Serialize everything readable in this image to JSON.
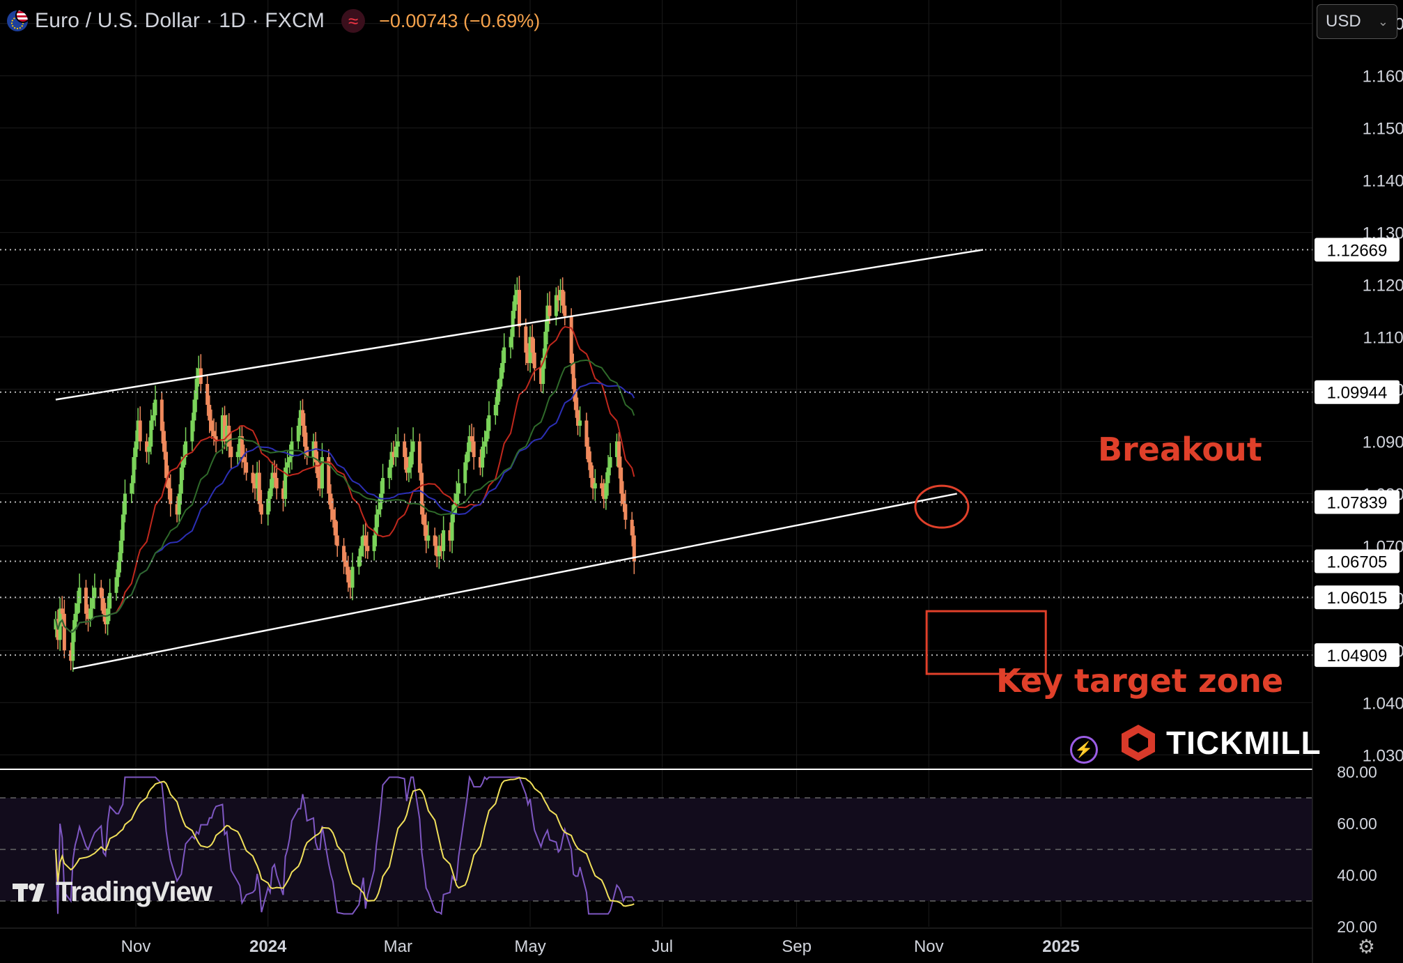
{
  "header": {
    "symbol_title": "Euro / U.S. Dollar · 1D · FXCM",
    "change_text": "−0.00743 (−0.69%)",
    "indicator_icon": "wave-icon",
    "flag_icon": "eur-usd-flag-icon"
  },
  "currency_selector": {
    "value": "USD"
  },
  "annotations": {
    "breakout": "Breakout",
    "target_zone": "Key target zone"
  },
  "branding": {
    "tradingview": "TradingView",
    "tickmill": "TICKMILL"
  },
  "colors": {
    "background": "#000000",
    "up_candle": "#7bd35a",
    "down_candle": "#f08a5d",
    "channel": "#ffffff",
    "ma_fast": "#c0281d",
    "ma_slow": "#2c2fb5",
    "ma_mid": "#2f6a2a",
    "rsi": "#7e57c2",
    "rsi_ma": "#f1e05a",
    "annotation": "#e0402a"
  },
  "chart_data": {
    "type": "candlestick",
    "timeframe": "1D",
    "ylim": [
      1.0275,
      1.1745
    ],
    "price_ticks": [
      "1.17000",
      "1.16000",
      "1.15000",
      "1.14000",
      "1.13000",
      "1.12000",
      "1.11000",
      "1.10000",
      "1.09000",
      "1.08000",
      "1.07000",
      "1.06000",
      "1.05000",
      "1.04000",
      "1.03000"
    ],
    "price_tick_values": [
      1.17,
      1.16,
      1.15,
      1.14,
      1.13,
      1.12,
      1.11,
      1.1,
      1.09,
      1.08,
      1.07,
      1.06,
      1.05,
      1.04,
      1.03
    ],
    "level_labels": [
      {
        "label": "1.12669",
        "value": 1.12669
      },
      {
        "label": "1.09944",
        "value": 1.09944
      },
      {
        "label": "1.07839",
        "value": 1.07839
      },
      {
        "label": "1.06705",
        "value": 1.06705
      },
      {
        "label": "1.06015",
        "value": 1.06015
      },
      {
        "label": "1.04909",
        "value": 1.04909
      }
    ],
    "x_ticks": [
      "Nov",
      "2024",
      "Mar",
      "May",
      "Jul",
      "Sep",
      "Nov",
      "2025"
    ],
    "x_tick_dates": [
      "2023-11-01",
      "2024-01-01",
      "2024-03-01",
      "2024-05-01",
      "2024-07-01",
      "2024-09-01",
      "2024-11-01",
      "2025-01-01"
    ],
    "close_series": {
      "start_date": "2023-09-25",
      "closes": [
        1.056,
        1.052,
        1.058,
        1.057,
        1.05,
        1.048,
        1.054,
        1.057,
        1.059,
        1.062,
        1.057,
        1.056,
        1.058,
        1.06,
        1.062,
        1.06,
        1.057,
        1.055,
        1.058,
        1.061,
        1.064,
        1.067,
        1.071,
        1.076,
        1.08,
        1.082,
        1.087,
        1.09,
        1.094,
        1.09,
        1.088,
        1.089,
        1.094,
        1.095,
        1.098,
        1.092,
        1.088,
        1.083,
        1.081,
        1.078,
        1.076,
        1.08,
        1.085,
        1.087,
        1.09,
        1.094,
        1.098,
        1.102,
        1.104,
        1.101,
        1.097,
        1.094,
        1.092,
        1.091,
        1.09,
        1.095,
        1.09,
        1.093,
        1.089,
        1.087,
        1.088,
        1.091,
        1.087,
        1.086,
        1.084,
        1.082,
        1.081,
        1.084,
        1.078,
        1.076,
        1.079,
        1.081,
        1.084,
        1.083,
        1.081,
        1.079,
        1.085,
        1.086,
        1.087,
        1.09,
        1.093,
        1.096,
        1.093,
        1.089,
        1.087,
        1.09,
        1.086,
        1.083,
        1.081,
        1.087,
        1.08,
        1.077,
        1.075,
        1.072,
        1.07,
        1.067,
        1.066,
        1.063,
        1.062,
        1.066,
        1.068,
        1.07,
        1.072,
        1.07,
        1.069,
        1.072,
        1.076,
        1.077,
        1.08,
        1.083,
        1.085,
        1.088,
        1.087,
        1.089,
        1.09,
        1.087,
        1.084,
        1.085,
        1.088,
        1.09,
        1.084,
        1.076,
        1.074,
        1.071,
        1.072,
        1.07,
        1.068,
        1.07,
        1.069,
        1.073,
        1.071,
        1.076,
        1.078,
        1.08,
        1.082,
        1.086,
        1.088,
        1.091,
        1.09,
        1.087,
        1.085,
        1.089,
        1.09,
        1.092,
        1.095,
        1.097,
        1.1,
        1.102,
        1.105,
        1.108,
        1.11,
        1.115,
        1.118,
        1.119,
        1.112,
        1.107,
        1.105,
        1.11,
        1.107,
        1.104,
        1.101,
        1.106,
        1.111,
        1.116,
        1.114,
        1.118,
        1.117,
        1.119,
        1.116,
        1.114,
        1.105,
        1.1,
        1.096,
        1.093,
        1.094,
        1.089,
        1.086,
        1.083,
        1.081,
        1.082,
        1.081,
        1.079,
        1.082,
        1.085,
        1.087,
        1.09,
        1.085,
        1.08,
        1.078,
        1.075,
        1.072,
        1.067
      ]
    },
    "channel_upper": [
      {
        "date": "2023-09-25",
        "value": 1.098
      },
      {
        "date": "2024-11-26",
        "value": 1.12669
      }
    ],
    "channel_lower": [
      {
        "date": "2023-10-03",
        "value": 1.0465
      },
      {
        "date": "2024-11-14",
        "value": 1.08
      }
    ],
    "target_zone": {
      "from_date": "2024-10-31",
      "to_date": "2024-12-25",
      "low": 1.0455,
      "high": 1.0575
    },
    "rsi": {
      "ylim": [
        20,
        80
      ],
      "ticks": [
        "80.00",
        "60.00",
        "40.00",
        "20.00"
      ],
      "tick_values": [
        80,
        60,
        40,
        20
      ],
      "bands": [
        70,
        50,
        30
      ]
    }
  }
}
